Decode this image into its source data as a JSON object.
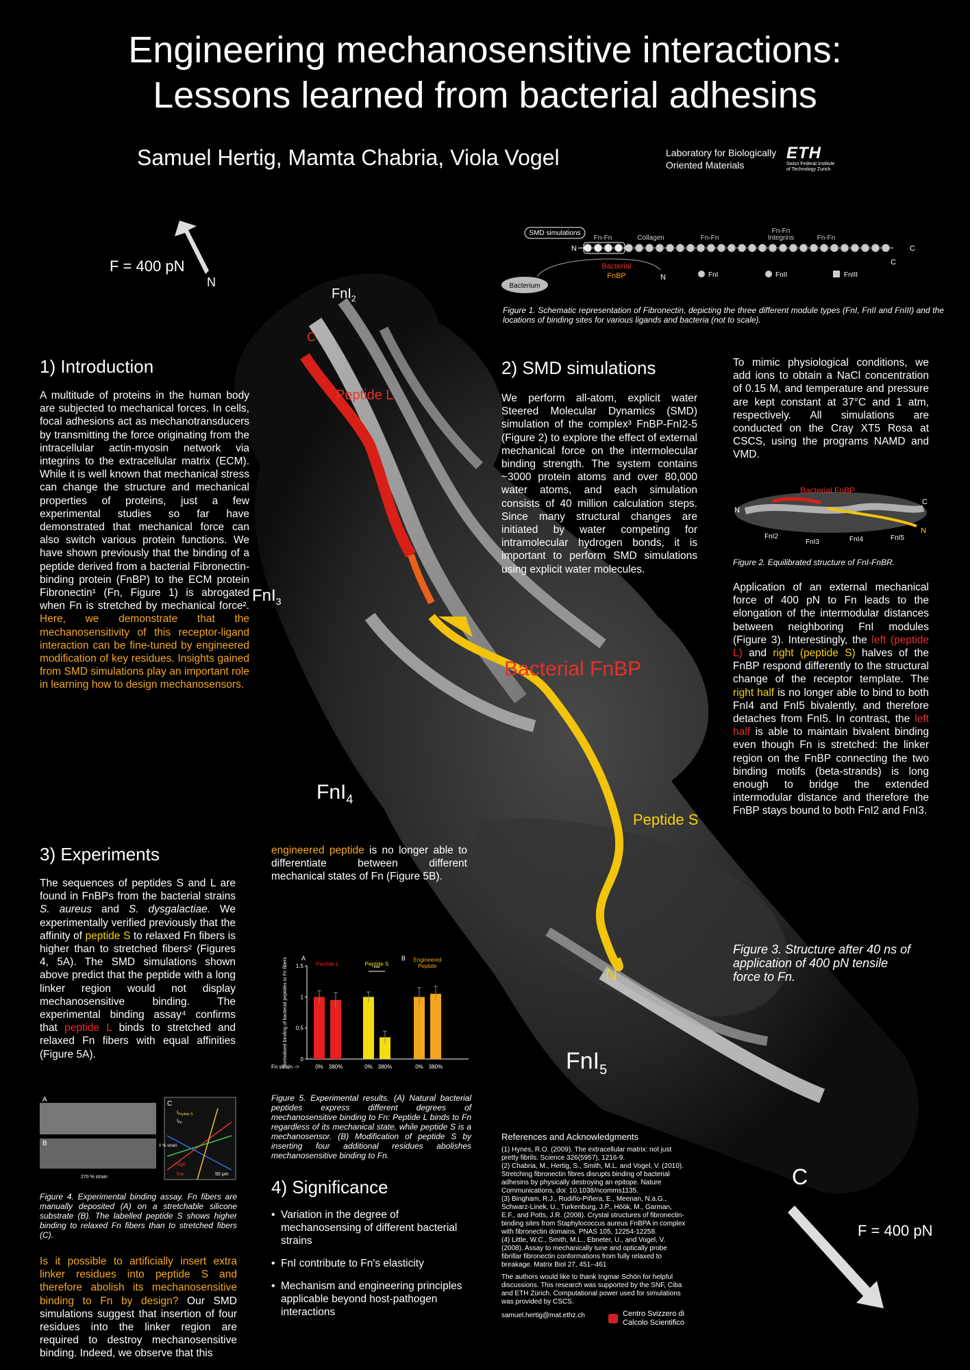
{
  "header": {
    "title_line1": "Engineering mechanosensitive interactions:",
    "title_line2": "Lessons learned from bacterial adhesins",
    "authors": "Samuel Hertig, Mamta Chabria, Viola Vogel",
    "lab_line1": "Laboratory for Biologically",
    "lab_line2": "Oriented Materials",
    "eth_logo": "ETH",
    "eth_sub1": "Swiss Federal Institute",
    "eth_sub2": "of Technology Zurich"
  },
  "structure_labels": {
    "force_top": "F = 400 pN",
    "force_bottom": "F = 400 pN",
    "n_top": "N",
    "c_top": "C",
    "fn2": "FnI",
    "fn3": "FnI",
    "fn4": "FnI",
    "fn5": "FnI",
    "fn2_sub": "2",
    "fn3_sub": "3",
    "fn4_sub": "4",
    "fn5_sub": "5",
    "peptide_l": "Peptide L",
    "bacterial_fnbp": "Bacterial FnBP",
    "peptide_s": "Peptide S",
    "n_bottom": "N",
    "c_bottom": "C"
  },
  "intro": {
    "heading": "1) Introduction",
    "text": "A multitude of proteins in the human body are subjected to mechanical forces. In cells, focal adhesions act as mechanotransducers by transmitting the force originating from the intracellular actin-myosin network via integrins to the extracellular matrix (ECM). While it is well known that mechanical stress can change the structure and mechanical properties of proteins, just a few experimental studies so far have demonstrated that mechanical force can also switch various protein functions. We have shown previously that the binding of a peptide derived from a bacterial Fibronectin-binding protein (FnBP) to the ECM protein Fibronectin¹ (Fn, Figure 1) is abrogated when Fn is stretched by mechanical force².",
    "highlight": "Here, we demonstrate that the mechanosensitivity of this receptor-ligand interaction can be fine-tuned by engineered modification of key residues. Insights gained from SMD simulations play an important role in learning how to design mechanosensors."
  },
  "figure1": {
    "smd_box": "SMD simulations",
    "fnfn1": "Fn-Fn",
    "collagen": "Collagen",
    "fnfn2": "Fn-Fn",
    "integrins_top": "Fn-Fn",
    "integrins": "Integrins",
    "fnfn3": "Fn-Fn",
    "n_left": "N",
    "c_right": "C",
    "c_right2": "C",
    "bacterium": "Bacterium",
    "bacterial": "Bacterial",
    "fnbp": "FnBP",
    "n_bottom": "N",
    "legend_fni": "FnI",
    "legend_fnii": "FnII",
    "legend_fniii": "FnIII",
    "caption": "Figure 1. Schematic representation of Fibronectin, depicting the three different module types (FnI, FnII and FnIII) and the locations of binding sites for various ligands and bacteria (not to scale)."
  },
  "smd": {
    "heading": "2) SMD simulations",
    "text": "We perform all-atom, explicit water Steered Molecular Dynamics (SMD) simulation of the complex³ FnBP-FnI2-5 (Figure 2) to explore the effect of external mechanical force on the intermolecular binding strength. The system contains ~3000 protein atoms and over 80,000 water atoms, and each simulation consists of 40 million calculation steps. Since many structural changes are initiated by water competing for intramolecular hydrogen bonds, it is important to perform SMD simulations using explicit water molecules.",
    "text2": "To mimic physiological conditions, we add ions to obtain a NaCl concentration of 0.15 M, and temperature and pressure are kept constant at 37°C and 1 atm, respectively. All simulations are conducted on the Cray XT5 Rosa at CSCS, using the programs NAMD and VMD."
  },
  "figure2": {
    "label_fnbp": "Bacterial FnBP",
    "n_left": "N",
    "c_right": "C",
    "n_right": "N",
    "fn2": "FnI2",
    "fn3": "FnI3",
    "fn4": "FnI4",
    "fn5": "FnI5",
    "caption": "Figure 2. Equilibrated structure of FnI-FnBR."
  },
  "application": {
    "p1": "Application of an external mechanical force of 400 pN to Fn leads to the elongation of the intermodular distances between neighboring FnI modules (Figure 3). Interestingly, the",
    "left_l": "left (peptide L)",
    "and": "and",
    "right_s": "right (peptide S)",
    "p2": "halves of the FnBP respond differently to the structural change of the receptor template. The",
    "right_half": "right half",
    "p3": "is no longer able to bind to both FnI4 and FnI5 bivalently, and therefore detaches from FnI5. In contrast, the",
    "left_half": "left half",
    "p4": "is able to maintain bivalent binding even though Fn is stretched: the linker region on the FnBP connecting the two binding motifs (beta-strands) is long enough to bridge the extended intermodular distance and therefore the FnBP stays bound to both FnI2 and FnI3."
  },
  "figure3": {
    "caption": "Figure 3. Structure after 40 ns of application of 400 pN tensile force to Fn."
  },
  "experiments": {
    "heading": "3) Experiments",
    "t1": "The sequences of peptides S and L are found in FnBPs from the bacterial strains",
    "aureus": "S. aureus",
    "and": "and",
    "dysgalactiae": "S. dysgalactiae.",
    "t2": "We experimentally verified previously that the affinity of",
    "peptide_s": "peptide S",
    "t3": "to relaxed Fn fibers is higher than to stretched fibers² (Figures 4, 5A). The SMD simulations shown above predict that the peptide with a long linker region would not display mechanosensitive binding. The experimental binding assay⁴ confirms that",
    "peptide_l": "peptide L",
    "t4": "binds to stretched and relaxed Fn fibers with equal affinities (Figure 5A).",
    "question": "Is it possible to artificially insert extra linker residues into peptide S and therefore abolish its mechanosensitive binding to Fn by design?",
    "t5": "Our SMD simulations suggest that insertion of four residues into the linker region are required to destroy mechanosensitive binding. Indeed, we observe that this",
    "engineered": "engineered peptide",
    "t6": "is no longer able to differentiate between different mechanical states of Fn (Figure 5B)."
  },
  "figure4": {
    "label_a": "A",
    "label_b": "B",
    "label_c": "C",
    "strain_b": "270 % strain",
    "strain_side": "0 % strain",
    "high": "high",
    "low": "low",
    "scale": "50 μm",
    "i_peptide": "I",
    "i_peptide_sub": "Peptide S",
    "i_fn": "I",
    "i_fn_sub": "Fn",
    "caption": "Figure 4. Experimental binding assay. Fn fibers are manually deposited (A) on a stretchable silicone substrate (B). The labelled peptide S shows higher binding to relaxed Fn fibers than to stretched fibers (C)."
  },
  "chart_data": {
    "type": "bar",
    "panels": [
      "A",
      "B"
    ],
    "ylabel": "Normalized binding of bacterial peptides to Fn fibers",
    "xlabel": "Fn strain ->",
    "ylim": [
      0,
      1.5
    ],
    "yticks": [
      "0",
      "0.5",
      "1",
      "1.5"
    ],
    "series": [
      {
        "name": "Peptide L",
        "color": "#e82020",
        "categories": [
          "0%",
          "380%"
        ],
        "values": [
          1.0,
          0.95
        ],
        "errors": [
          0.1,
          0.12
        ]
      },
      {
        "name": "Peptide S",
        "color": "#f1dd10",
        "categories": [
          "0%",
          "380%"
        ],
        "values": [
          1.0,
          0.35
        ],
        "errors": [
          0.08,
          0.1
        ]
      },
      {
        "name": "Engineered Peptide",
        "color": "#f3a51c",
        "categories": [
          "0%",
          "380%"
        ],
        "values": [
          1.0,
          1.05
        ],
        "errors": [
          0.15,
          0.12
        ]
      }
    ],
    "significance": "***"
  },
  "figure5": {
    "caption": "Figure 5. Experimental results. (A) Natural bacterial peptides express different degrees of mechanosensitive binding to Fn: Peptide L binds to Fn regardless of its mechanical state, while peptide S is a mechanosensor. (B) Modification of peptide S by inserting four additional residues abolishes mechanosensitive binding to Fn."
  },
  "significance": {
    "heading": "4) Significance",
    "items": [
      "Variation in the degree of mechanosensing of different bacterial strains",
      "FnI contribute to Fn's elasticity",
      "Mechanism and engineering principles applicable beyond host-pathogen interactions"
    ]
  },
  "references": {
    "heading": "References and Acknowledgments",
    "r1": "(1) Hynes, R.O. (2009). The extracellular matrix: not just pretty fibrils. Science 326(5957), 1216-9.",
    "r2": "(2) Chabria, M., Hertig, S., Smith, M.L. and Vogel, V. (2010). Stretching fibronectin fibres disrupts binding of bacterial adhesins by physically destroying an epitope. Nature Communications, doi: 10.1038/ncomms1135.",
    "r3": "(3) Bingham, R.J., Rudiño-Piñera, E., Meenan, N.a.G., Schwarz-Linek, U., Turkenburg, J.P., Höök, M., Garman, E.F., and Potts, J.R. (2008). Crystal structures of fibronectin-binding sites from Staphylococcus aureus FnBPA in complex with fibronectin domains. PNAS 105, 12254-12258.",
    "r4": "(4) Little, W.C., Smith, M.L., Ebneter, U., and Vogel, V. (2008). Assay to mechanically tune and optically probe fibrillar fibronectin conformations from fully relaxed to breakage. Matrix Biol 27, 451--461",
    "ack": "The authors would like to thank Ingmar Schön for helpful discussions. This research was supported by the SNF, Ciba and ETH Zürich. Computational power used for simulations was provided by CSCS.",
    "email": "samuel.hertig@mat.ethz.ch",
    "cscs1": "Centro Svizzero di",
    "cscs2": "Calcolo Scientifico"
  }
}
